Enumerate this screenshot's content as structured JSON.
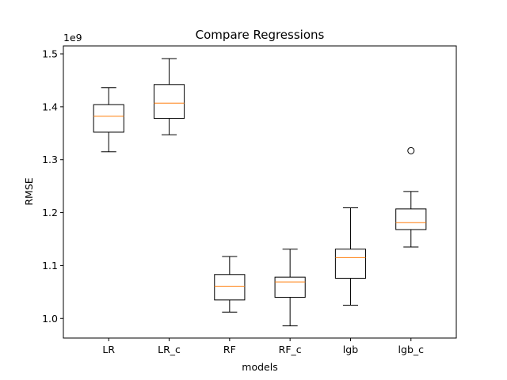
{
  "chart_data": {
    "type": "boxplot",
    "title": "Compare Regressions",
    "xlabel": "models",
    "ylabel": "RMSE",
    "y_offset_label": "1e9",
    "ylim": [
      0.963,
      1.515
    ],
    "yticks": [
      1.0,
      1.1,
      1.2,
      1.3,
      1.4,
      1.5
    ],
    "ytick_labels": [
      "1.0",
      "1.1",
      "1.2",
      "1.3",
      "1.4",
      "1.5"
    ],
    "grid": false,
    "colors": {
      "box": "#000000",
      "median": "#ff7f0e",
      "flier": "#000000"
    },
    "categories": [
      "LR",
      "LR_c",
      "RF",
      "RF_c",
      "lgb",
      "lgb_c"
    ],
    "boxes": [
      {
        "label": "LR",
        "whisker_low": 1.315,
        "q1": 1.352,
        "median": 1.382,
        "q3": 1.404,
        "whisker_high": 1.436,
        "fliers": []
      },
      {
        "label": "LR_c",
        "whisker_low": 1.347,
        "q1": 1.378,
        "median": 1.407,
        "q3": 1.442,
        "whisker_high": 1.491,
        "fliers": []
      },
      {
        "label": "RF",
        "whisker_low": 1.012,
        "q1": 1.035,
        "median": 1.061,
        "q3": 1.083,
        "whisker_high": 1.117,
        "fliers": []
      },
      {
        "label": "RF_c",
        "whisker_low": 0.986,
        "q1": 1.04,
        "median": 1.069,
        "q3": 1.078,
        "whisker_high": 1.131,
        "fliers": []
      },
      {
        "label": "lgb",
        "whisker_low": 1.025,
        "q1": 1.076,
        "median": 1.115,
        "q3": 1.131,
        "whisker_high": 1.209,
        "fliers": []
      },
      {
        "label": "lgb_c",
        "whisker_low": 1.135,
        "q1": 1.168,
        "median": 1.181,
        "q3": 1.207,
        "whisker_high": 1.24,
        "fliers": [
          1.317
        ]
      }
    ]
  }
}
